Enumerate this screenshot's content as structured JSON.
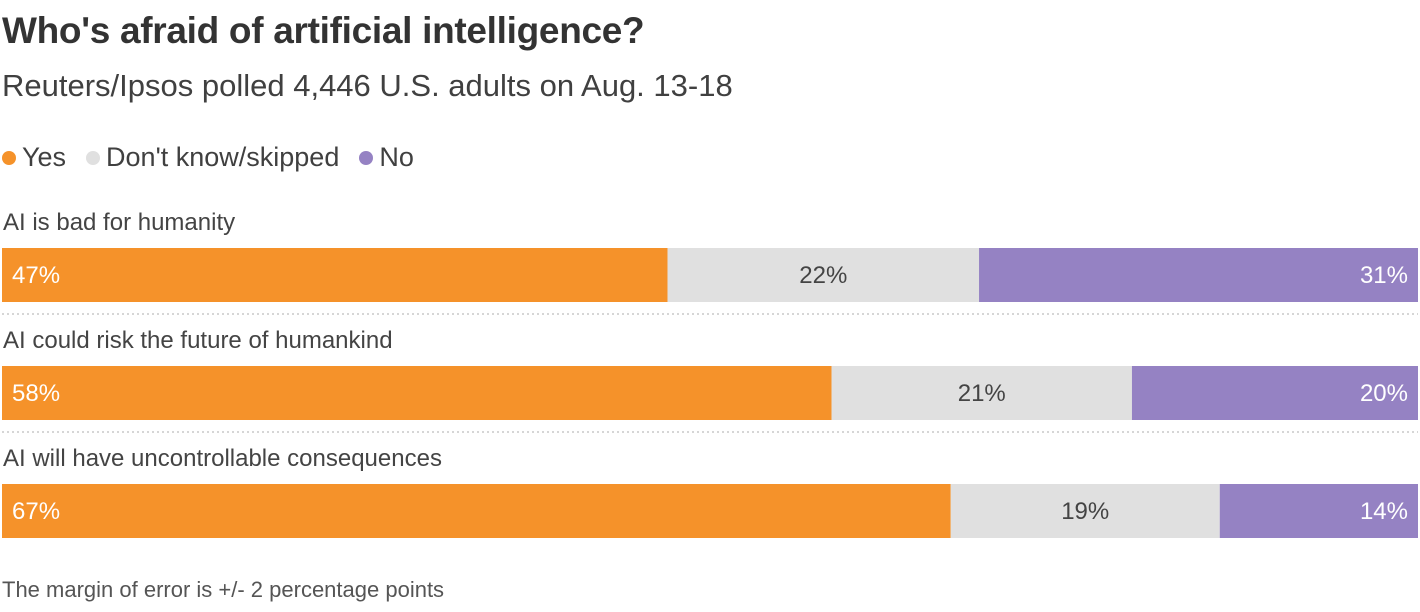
{
  "chart_data": {
    "type": "bar",
    "orientation": "horizontal",
    "stacked": true,
    "normalized_percent": true,
    "title": "Who's afraid of artificial intelligence?",
    "subtitle": "Reuters/Ipsos polled 4,446 U.S. adults on Aug. 13-18",
    "note": "The margin of error is +/- 2 percentage points",
    "legend_position": "top-left",
    "categories": [
      "AI is bad for humanity",
      "AI could risk the future of humankind",
      "AI will have uncontrollable consequences"
    ],
    "series": [
      {
        "name": "Yes",
        "color": "#f5922a",
        "label_color": "#ffffff",
        "values": [
          47,
          58,
          67
        ],
        "labels": [
          "47%",
          "58%",
          "67%"
        ]
      },
      {
        "name": "Don't know/skipped",
        "color": "#e0e0e0",
        "label_color": "#444444",
        "values": [
          22,
          21,
          19
        ],
        "labels": [
          "22%",
          "21%",
          "19%"
        ]
      },
      {
        "name": "No",
        "color": "#9582c3",
        "label_color": "#ffffff",
        "values": [
          31,
          20,
          14
        ],
        "labels": [
          "31%",
          "20%",
          "14%"
        ]
      }
    ]
  }
}
